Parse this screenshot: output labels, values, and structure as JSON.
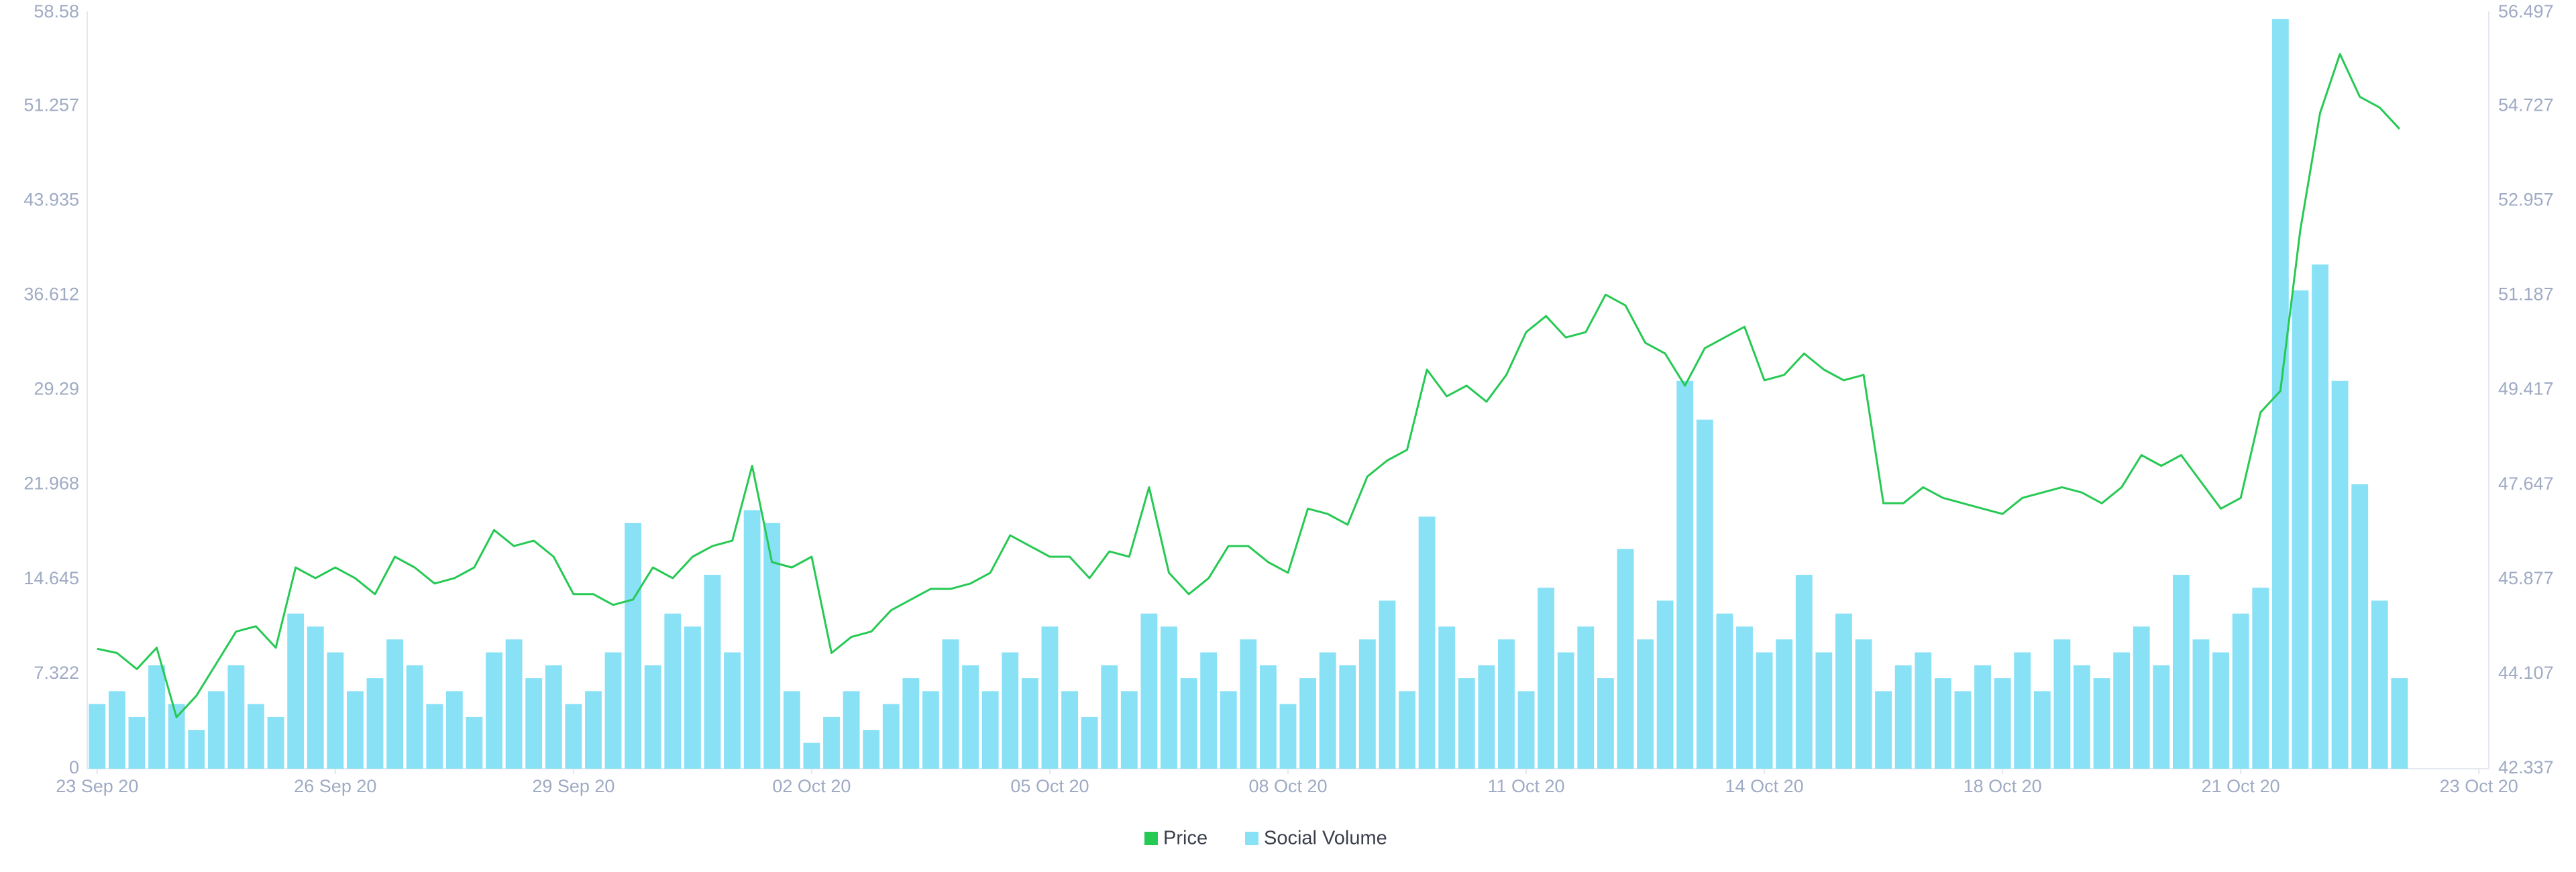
{
  "chart_data": {
    "type": "combo",
    "categories": [
      "23 Sep 20",
      null,
      null,
      null,
      null,
      null,
      null,
      null,
      null,
      null,
      null,
      null,
      "26 Sep 20",
      null,
      null,
      null,
      null,
      null,
      null,
      null,
      null,
      null,
      null,
      null,
      "29 Sep 20",
      null,
      null,
      null,
      null,
      null,
      null,
      null,
      null,
      null,
      null,
      null,
      "02 Oct 20",
      null,
      null,
      null,
      null,
      null,
      null,
      null,
      null,
      null,
      null,
      null,
      "05 Oct 20",
      null,
      null,
      null,
      null,
      null,
      null,
      null,
      null,
      null,
      null,
      null,
      "08 Oct 20",
      null,
      null,
      null,
      null,
      null,
      null,
      null,
      null,
      null,
      null,
      null,
      "11 Oct 20",
      null,
      null,
      null,
      null,
      null,
      null,
      null,
      null,
      null,
      null,
      null,
      "14 Oct 20",
      null,
      null,
      null,
      null,
      null,
      null,
      null,
      null,
      null,
      null,
      null,
      "18 Oct 20",
      null,
      null,
      null,
      null,
      null,
      null,
      null,
      null,
      null,
      null,
      null,
      "21 Oct 20",
      null,
      null,
      null,
      null,
      null,
      null,
      null,
      null,
      null,
      null,
      null,
      "23 Oct 20"
    ],
    "series": [
      {
        "name": "Social Volume",
        "type": "bar",
        "axis": "y",
        "color": "#89e1f6",
        "values": [
          5,
          6,
          4,
          8,
          5,
          3,
          6,
          8,
          5,
          4,
          12,
          11,
          9,
          6,
          7,
          10,
          8,
          5,
          6,
          4,
          9,
          10,
          7,
          8,
          5,
          6,
          9,
          19,
          8,
          12,
          11,
          15,
          9,
          20,
          19,
          6,
          2,
          4,
          6,
          3,
          5,
          7,
          6,
          10,
          8,
          6,
          9,
          7,
          11,
          6,
          4,
          8,
          6,
          12,
          11,
          7,
          9,
          6,
          10,
          8,
          5,
          7,
          9,
          8,
          10,
          13,
          6,
          19.5,
          11,
          7,
          8,
          10,
          6,
          14,
          9,
          11,
          7,
          17,
          10,
          13,
          30,
          27,
          12,
          11,
          9,
          10,
          15,
          9,
          12,
          10,
          6,
          8,
          9,
          7,
          6,
          8,
          7,
          9,
          6,
          10,
          8,
          7,
          9,
          11,
          8,
          15,
          10,
          9,
          12,
          14,
          58,
          37,
          39,
          30,
          22,
          13,
          7,
          null,
          null,
          null,
          null
        ]
      },
      {
        "name": "Price",
        "type": "line",
        "axis": "y2",
        "color": "#26c953",
        "values": [
          44.58,
          44.5,
          44.2,
          44.6,
          43.3,
          43.7,
          44.3,
          44.9,
          45.0,
          44.6,
          46.1,
          45.9,
          46.1,
          45.9,
          45.6,
          46.3,
          46.1,
          45.8,
          45.9,
          46.1,
          46.8,
          46.5,
          46.6,
          46.3,
          45.6,
          45.6,
          45.4,
          45.5,
          46.1,
          45.9,
          46.3,
          46.5,
          46.6,
          48.0,
          46.2,
          46.1,
          46.3,
          44.5,
          44.8,
          44.9,
          45.3,
          45.5,
          45.7,
          45.7,
          45.8,
          46.0,
          46.7,
          46.5,
          46.3,
          46.3,
          45.9,
          46.4,
          46.3,
          47.6,
          46.0,
          45.6,
          45.9,
          46.5,
          46.5,
          46.2,
          46.0,
          47.2,
          47.1,
          46.9,
          47.8,
          48.1,
          48.3,
          49.8,
          49.3,
          49.5,
          49.2,
          49.7,
          50.5,
          50.8,
          50.4,
          50.5,
          51.2,
          51.0,
          50.3,
          50.1,
          49.5,
          50.2,
          50.4,
          50.6,
          49.6,
          49.7,
          50.1,
          49.8,
          49.6,
          49.7,
          47.3,
          47.3,
          47.6,
          47.4,
          47.3,
          47.2,
          47.1,
          47.4,
          47.5,
          47.6,
          47.5,
          47.3,
          47.6,
          48.2,
          48.0,
          48.2,
          47.7,
          47.2,
          47.4,
          49.0,
          49.4,
          52.4,
          54.6,
          55.7,
          54.9,
          54.7,
          54.3,
          null,
          null,
          null,
          null
        ]
      }
    ],
    "ylim": [
      0,
      58.58
    ],
    "yticks": [
      0,
      7.322,
      14.645,
      21.968,
      29.29,
      36.612,
      43.935,
      51.257,
      58.58
    ],
    "y2lim": [
      42.337,
      56.497
    ],
    "y2ticks": [
      42.337,
      44.107,
      45.877,
      47.647,
      49.417,
      51.187,
      52.957,
      54.727,
      56.497
    ],
    "grid": false,
    "legend": "bottom"
  }
}
